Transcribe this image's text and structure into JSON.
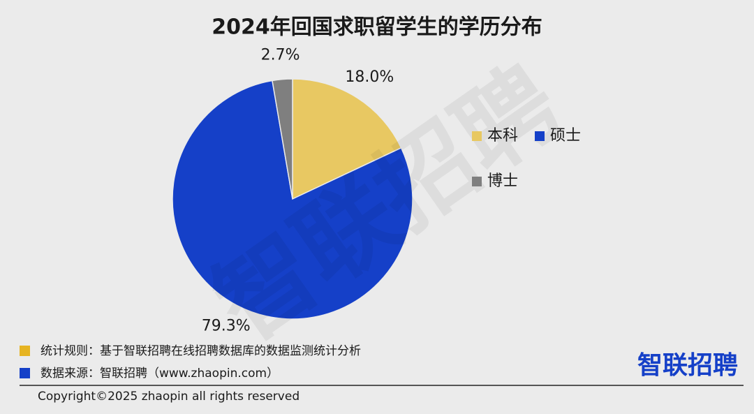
{
  "chart_data": {
    "type": "pie",
    "title": "2024年回国求职留学生的学历分布",
    "categories": [
      "本科",
      "硕士",
      "博士"
    ],
    "values": [
      18.0,
      79.3,
      2.7
    ],
    "value_labels": [
      "18.0%",
      "79.3%",
      "2.7%"
    ],
    "colors": [
      "#e8c862",
      "#1540c8",
      "#7f7f7f"
    ],
    "legend": "right"
  },
  "notes": [
    "统计规则：基于智联招聘在线招聘数据库的数据监测统计分析",
    "数据来源：智联招聘（www.zhaopin.com）"
  ],
  "copyright": "Copyright©2025 zhaopin all rights reserved",
  "logo": "智联招聘",
  "watermark": "智联招聘"
}
